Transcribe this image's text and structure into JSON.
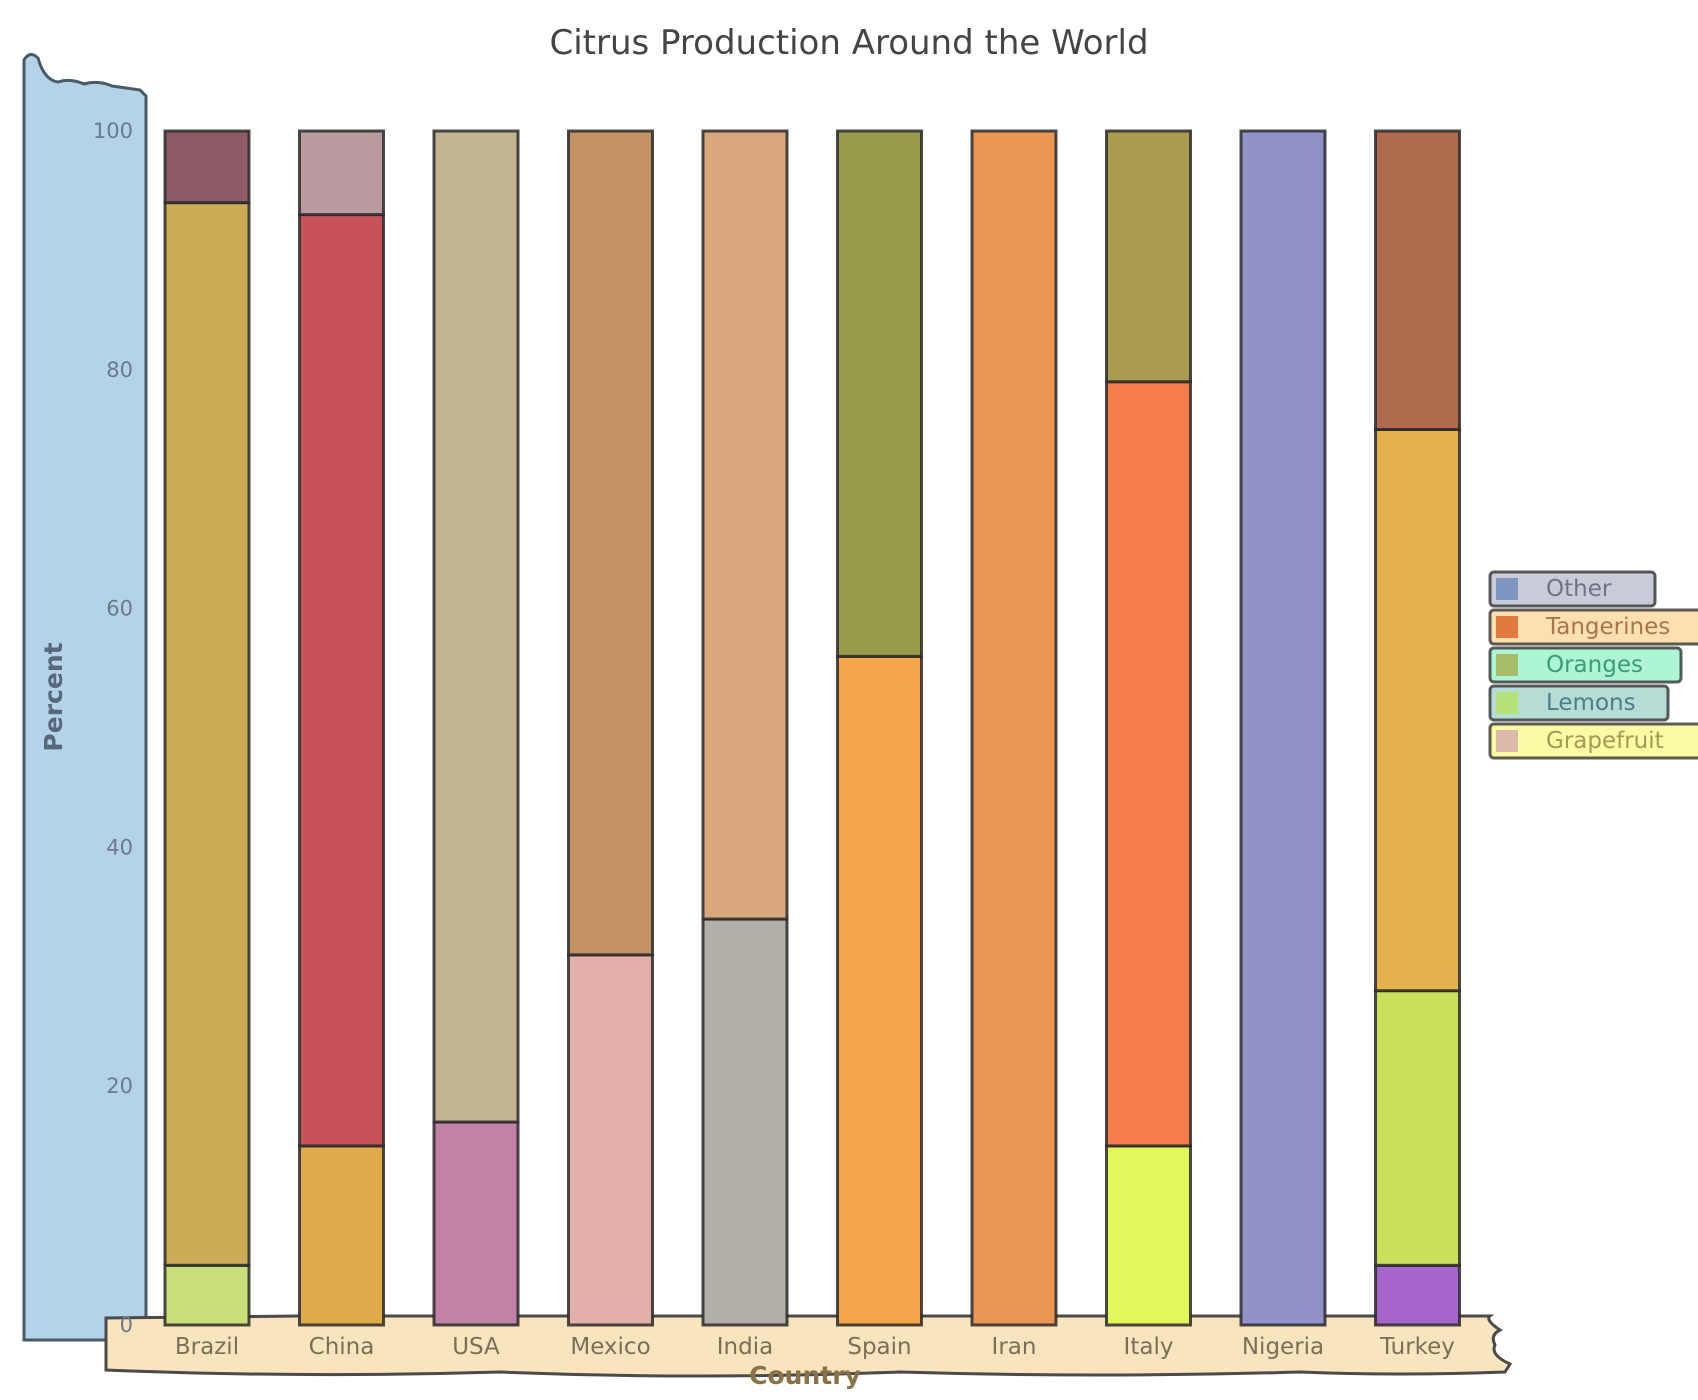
{
  "chart_data": {
    "type": "bar",
    "stacked": true,
    "title": "Citrus Production Around the World",
    "xlabel": "Country",
    "ylabel": "Percent",
    "ylim": [
      0,
      100
    ],
    "yticks": [
      0,
      20,
      40,
      60,
      80,
      100
    ],
    "categories": [
      "Brazil",
      "China",
      "USA",
      "Mexico",
      "India",
      "Spain",
      "Iran",
      "Italy",
      "Nigeria",
      "Turkey"
    ],
    "legend": {
      "placement": "right",
      "entries": [
        {
          "label": "Other",
          "swatch": "#7f96c2",
          "bg": "#c9ccd8",
          "text": "#6f7385"
        },
        {
          "label": "Tangerines",
          "swatch": "#e07a3e",
          "bg": "#fde0b0",
          "text": "#a8744a"
        },
        {
          "label": "Oranges",
          "swatch": "#a8bd6a",
          "bg": "#aef5d6",
          "text": "#3a9e6f"
        },
        {
          "label": "Lemons",
          "swatch": "#b5e37a",
          "bg": "#b6dcd6",
          "text": "#4c7d8a"
        },
        {
          "label": "Grapefruit",
          "swatch": "#dcb9a8",
          "bg": "#fbfba6",
          "text": "#a39a55"
        }
      ]
    },
    "segments": [
      [
        {
          "value": 5,
          "color": "#c8df7a"
        },
        {
          "value": 89,
          "color": "#ccab55"
        },
        {
          "value": 6,
          "color": "#8e5a66"
        }
      ],
      [
        {
          "value": 15,
          "color": "#deaa4a"
        },
        {
          "value": 78,
          "color": "#c8525a"
        },
        {
          "value": 7,
          "color": "#b99a9e"
        }
      ],
      [
        {
          "value": 17,
          "color": "#c282a6"
        },
        {
          "value": 83,
          "color": "#c4b591"
        }
      ],
      [
        {
          "value": 31,
          "color": "#e4afa9"
        },
        {
          "value": 69,
          "color": "#c39162"
        }
      ],
      [
        {
          "value": 34,
          "color": "#b3aea6"
        },
        {
          "value": 66,
          "color": "#d9a77b"
        }
      ],
      [
        {
          "value": 56,
          "color": "#f5a44a"
        },
        {
          "value": 44,
          "color": "#969c4a"
        }
      ],
      [
        {
          "value": 100,
          "color": "#ec9656"
        }
      ],
      [
        {
          "value": 15,
          "color": "#e2f75a"
        },
        {
          "value": 64,
          "color": "#f57d4a"
        },
        {
          "value": 21,
          "color": "#aa9c4e"
        }
      ],
      [
        {
          "value": 100,
          "color": "#9292ca"
        }
      ],
      [
        {
          "value": 5,
          "color": "#a665ca"
        },
        {
          "value": 23,
          "color": "#cbe05c"
        },
        {
          "value": 47,
          "color": "#e3b24e"
        },
        {
          "value": 25,
          "color": "#b06a4e"
        }
      ]
    ]
  }
}
